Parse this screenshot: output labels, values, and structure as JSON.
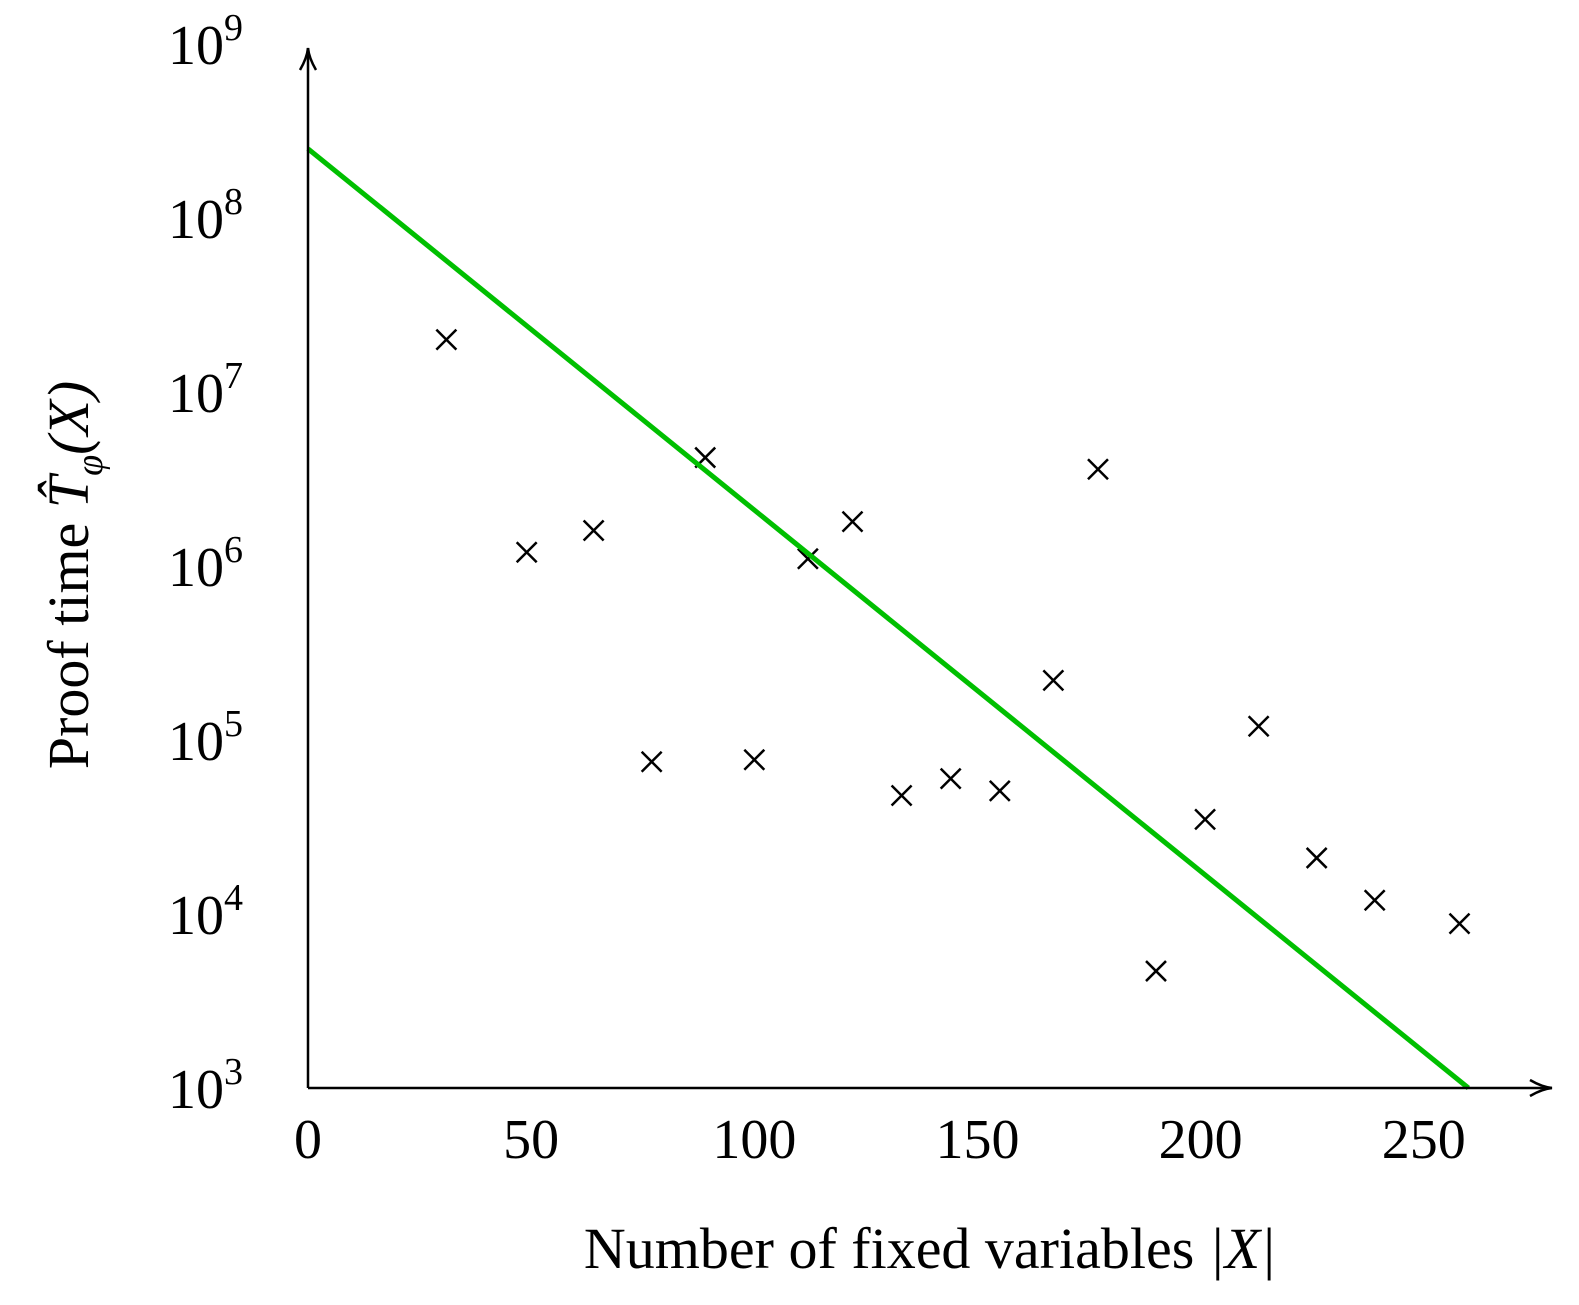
{
  "chart_data": {
    "type": "scatter",
    "title": "",
    "xlabel": {
      "text": "Number of fixed variables ",
      "math": "|X|"
    },
    "ylabel": {
      "text": "Proof time ",
      "math_base": "T̂",
      "math_sub": "φ",
      "math_arg": "(X)"
    },
    "xlim": [
      0,
      285
    ],
    "ylim": [
      1000,
      1000000000
    ],
    "yscale": "log",
    "x_ticks": [
      {
        "value": 0,
        "label": "0"
      },
      {
        "value": 50,
        "label": "50"
      },
      {
        "value": 100,
        "label": "100"
      },
      {
        "value": 150,
        "label": "150"
      },
      {
        "value": 200,
        "label": "200"
      },
      {
        "value": 250,
        "label": "250"
      }
    ],
    "y_ticks": [
      {
        "value": 1000,
        "base": "10",
        "exp": "3"
      },
      {
        "value": 10000,
        "base": "10",
        "exp": "4"
      },
      {
        "value": 100000,
        "base": "10",
        "exp": "5"
      },
      {
        "value": 1000000,
        "base": "10",
        "exp": "6"
      },
      {
        "value": 10000000,
        "base": "10",
        "exp": "7"
      },
      {
        "value": 100000000,
        "base": "10",
        "exp": "8"
      },
      {
        "value": 1000000000,
        "base": "10",
        "exp": "9"
      }
    ],
    "grid": false,
    "series": [
      {
        "type": "scatter",
        "marker": "x",
        "color": "#000000",
        "points": [
          {
            "x": 31,
            "y": 20000000
          },
          {
            "x": 49,
            "y": 1200000
          },
          {
            "x": 64,
            "y": 1600000
          },
          {
            "x": 77,
            "y": 75000
          },
          {
            "x": 89,
            "y": 4200000
          },
          {
            "x": 100,
            "y": 77000
          },
          {
            "x": 112,
            "y": 1100000
          },
          {
            "x": 122,
            "y": 1800000
          },
          {
            "x": 133,
            "y": 48000
          },
          {
            "x": 144,
            "y": 60000
          },
          {
            "x": 155,
            "y": 51000
          },
          {
            "x": 167,
            "y": 220000
          },
          {
            "x": 177,
            "y": 3600000
          },
          {
            "x": 190,
            "y": 4700
          },
          {
            "x": 201,
            "y": 35000
          },
          {
            "x": 213,
            "y": 120000
          },
          {
            "x": 226,
            "y": 21000
          },
          {
            "x": 239,
            "y": 12000
          },
          {
            "x": 258,
            "y": 8800
          }
        ]
      },
      {
        "type": "line",
        "color": "#00bf00",
        "points": [
          {
            "x": 0,
            "y": 250000000
          },
          {
            "x": 260,
            "y": 1000
          }
        ]
      }
    ]
  }
}
